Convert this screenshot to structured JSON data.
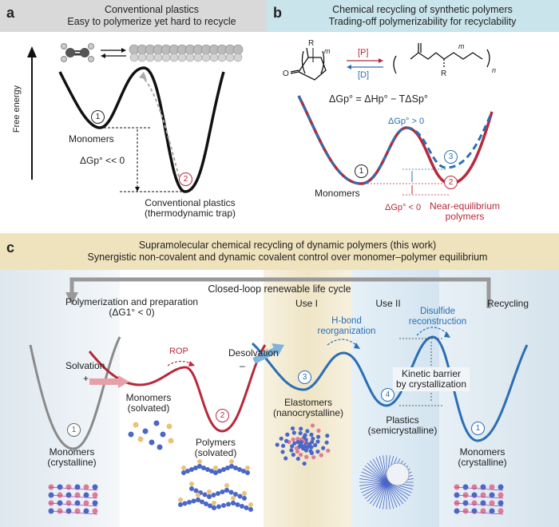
{
  "panel_a": {
    "label": "a",
    "title": "Conventional plastics",
    "subtitle": "Easy to polymerize yet hard to recycle",
    "yaxis": "Free energy",
    "monomers": "Monomers",
    "dg": "ΔGp° << 0",
    "trap_line1": "Conventional plastics",
    "trap_line2": "(thermodynamic trap)",
    "well1": "1",
    "well2": "2"
  },
  "panel_b": {
    "label": "b",
    "title": "Chemical recycling of synthetic polymers",
    "subtitle": "Trading-off polymerizability for recyclability",
    "reaction_P": "[P]",
    "reaction_D": "[D]",
    "monomer_R": "R",
    "monomer_m": "m",
    "monomer_O": "O",
    "polymer_m": "m",
    "polymer_n": "n",
    "polymer_R": "R",
    "equation": "ΔGp° = ΔHp° − TΔSp°",
    "dg_pos": "ΔGp° > 0",
    "dg_neg": "ΔGp° < 0",
    "monomers": "Monomers",
    "near_line1": "Near-equilibrium",
    "near_line2": "polymers",
    "well1": "1",
    "well2": "2",
    "well3": "3"
  },
  "panel_c": {
    "label": "c",
    "title_line1": "Supramolecular chemical recycling of dynamic polymers (this work)",
    "title_line2": "Synergistic non-covalent and dynamic covalent control over monomer–polymer equilibrium",
    "cycle": "Closed-loop renewable life cycle",
    "stage1_line1": "Polymerization and preparation",
    "stage1_line2": "(ΔG1° < 0)",
    "stage2": "Use I",
    "stage3": "Use II",
    "stage4": "Recycling",
    "solvation": "Solvation",
    "solvation_sign": "+",
    "rop": "ROP",
    "desolvation": "Desolvation",
    "desolvation_sign": "–",
    "hbond_line1": "H-bond",
    "hbond_line2": "reorganization",
    "disulfide_line1": "Disulfide",
    "disulfide_line2": "reconstruction",
    "kinetic_line1": "Kinetic barrier",
    "kinetic_line2": "by crystallization",
    "monomers_solv_line1": "Monomers",
    "monomers_solv_line2": "(solvated)",
    "polymers_solv_line1": "Polymers",
    "polymers_solv_line2": "(solvated)",
    "elastomers_line1": "Elastomers",
    "elastomers_line2": "(nanocrystalline)",
    "plastics_line1": "Plastics",
    "plastics_line2": "(semicrystalline)",
    "monomers_cryst_line1": "Monomers",
    "monomers_cryst_line2": "(crystalline)",
    "monomers_cryst2_line1": "Monomers",
    "monomers_cryst2_line2": "(crystalline)",
    "well1": "1",
    "well2": "2",
    "well3": "3",
    "well4": "4",
    "well1b": "1"
  },
  "colors": {
    "black_curve": "#111111",
    "red_curve": "#b8293a",
    "blue_curve": "#2a6fb5",
    "gray_curve": "#8a8a8a",
    "header_gray": "#d9d9d9",
    "header_blue": "#c9e4ea",
    "header_tan": "#efe3bd"
  }
}
